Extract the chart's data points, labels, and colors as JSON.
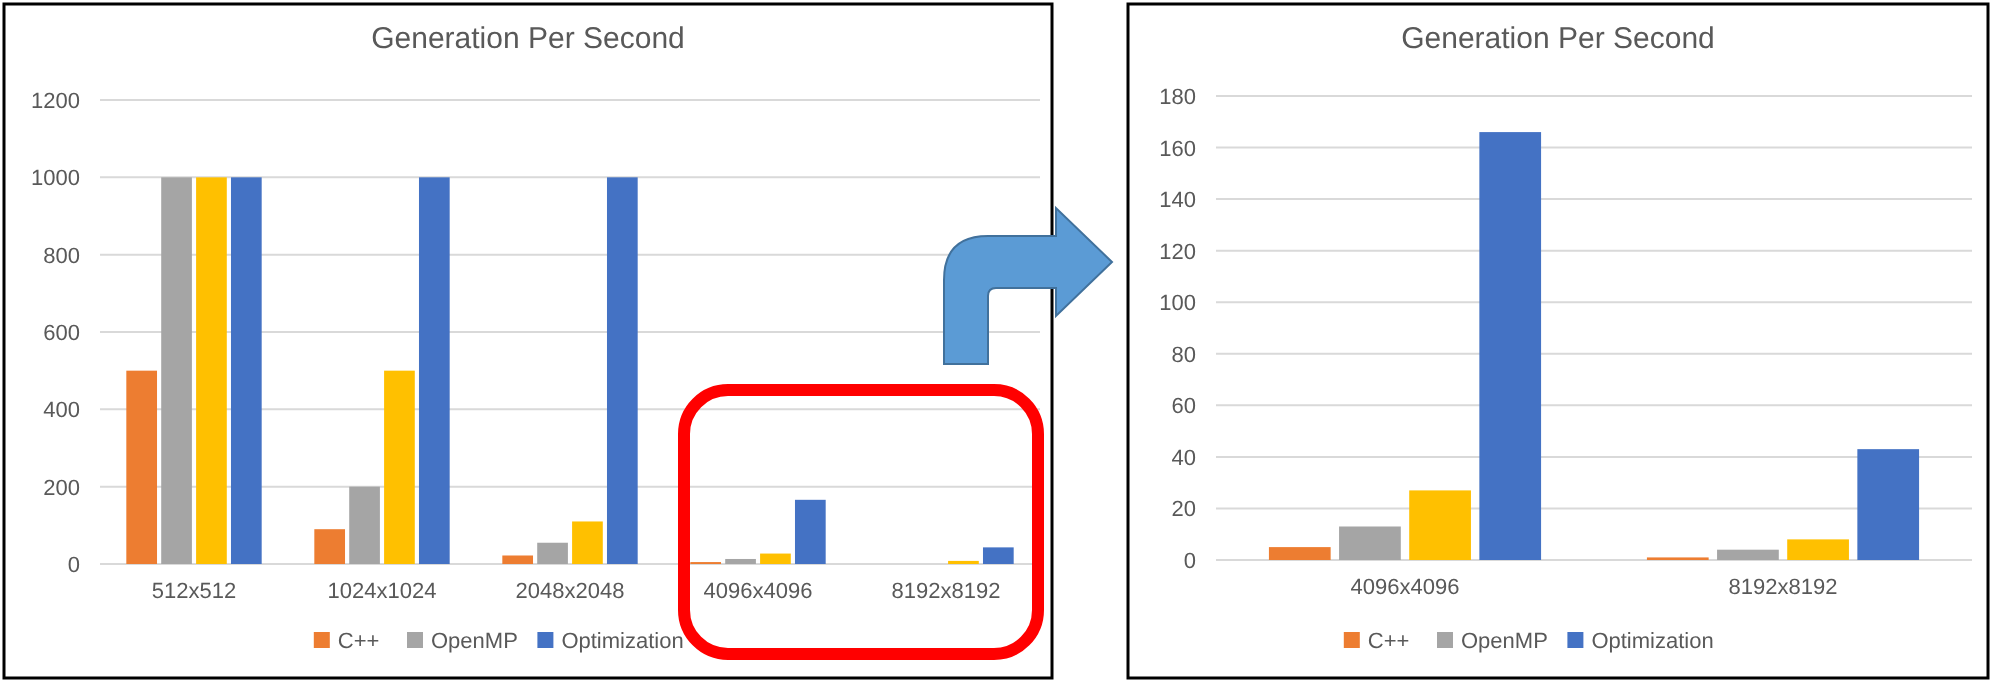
{
  "chart_data": [
    {
      "type": "bar",
      "title": "Generation Per Second",
      "categories": [
        "512x512",
        "1024x1024",
        "2048x2048",
        "4096x4096",
        "8192x8192"
      ],
      "ylim": [
        0,
        1200
      ],
      "yticks": [
        0,
        200,
        400,
        600,
        800,
        1000,
        1200
      ],
      "grid": "y",
      "legend": "bottom",
      "series": [
        {
          "name": "C++",
          "color": "#ed7d31",
          "values": [
            500,
            90,
            22,
            5,
            null
          ]
        },
        {
          "name": "OpenMP",
          "color": "#a5a5a5",
          "values": [
            1000,
            200,
            55,
            13,
            null
          ]
        },
        {
          "color": "#ffc000",
          "values": [
            1000,
            500,
            110,
            27,
            8
          ]
        },
        {
          "name": "Optimization",
          "color": "#4472c4",
          "values": [
            1000,
            1000,
            1000,
            166,
            43
          ]
        }
      ]
    },
    {
      "type": "bar",
      "title": "Generation Per Second",
      "categories": [
        "4096x4096",
        "8192x8192"
      ],
      "ylim": [
        0,
        180
      ],
      "yticks": [
        0,
        20,
        40,
        60,
        80,
        100,
        120,
        140,
        160,
        180
      ],
      "grid": "y",
      "legend": "bottom",
      "series": [
        {
          "name": "C++",
          "color": "#ed7d31",
          "values": [
            5,
            1
          ]
        },
        {
          "name": "OpenMP",
          "color": "#a5a5a5",
          "values": [
            13,
            4
          ]
        },
        {
          "color": "#ffc000",
          "values": [
            27,
            8
          ]
        },
        {
          "name": "Optimization",
          "color": "#4472c4",
          "values": [
            166,
            43
          ]
        }
      ]
    }
  ]
}
